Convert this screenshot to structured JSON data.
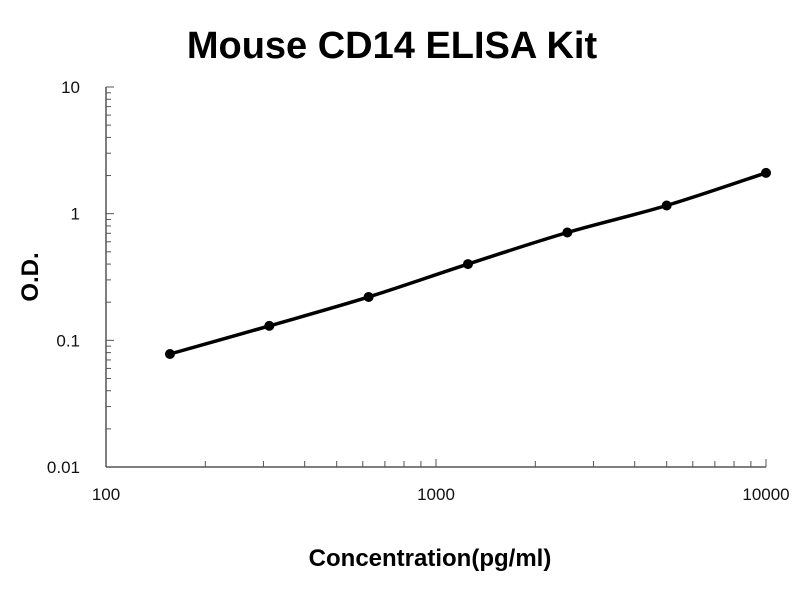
{
  "chart_data": {
    "type": "line",
    "title": "Mouse CD14 ELISA Kit",
    "xlabel": "Concentration(pg/ml)",
    "ylabel": "O.D.",
    "xscale": "log",
    "yscale": "log",
    "xlim": [
      100,
      10000
    ],
    "ylim": [
      0.01,
      10
    ],
    "xticks": [
      "100",
      "1000",
      "10000"
    ],
    "yticks": [
      "10",
      "1",
      "0.1",
      "0.01"
    ],
    "grid": false,
    "series": [
      {
        "x": [
          156.25,
          312.5,
          625,
          1250,
          2500,
          5000,
          10000
        ],
        "values": [
          0.078,
          0.13,
          0.22,
          0.4,
          0.71,
          1.16,
          2.1
        ]
      }
    ],
    "line_color": "#000000"
  }
}
